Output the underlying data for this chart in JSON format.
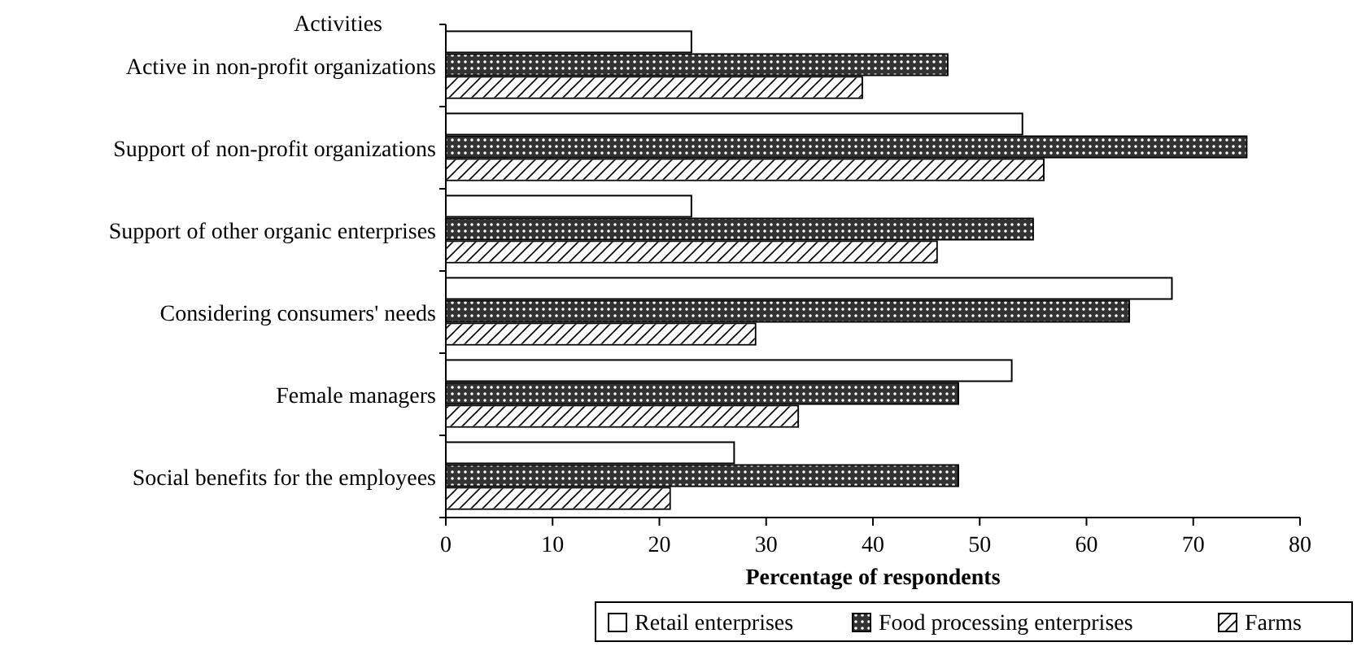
{
  "chart_data": {
    "type": "bar",
    "orientation": "horizontal",
    "ylabel": "Activities",
    "xlabel": "Percentage of respondents",
    "categories": [
      "Active in non-profit organizations",
      "Support of non-profit organizations",
      "Support of other organic enterprises",
      "Considering consumers' needs",
      "Female managers",
      "Social benefits for the employees"
    ],
    "series": [
      {
        "name": "Retail enterprises",
        "color": "#ffffff",
        "values": [
          23,
          54,
          23,
          68,
          53,
          27
        ]
      },
      {
        "name": "Food processing enterprises",
        "color": "#333333",
        "values": [
          47,
          75,
          55,
          64,
          48,
          48
        ]
      },
      {
        "name": "Farms",
        "color": "#ffffff",
        "values": [
          39,
          56,
          46,
          29,
          33,
          21
        ]
      }
    ],
    "xlim": [
      0,
      80
    ],
    "xticks": [
      0,
      10,
      20,
      30,
      40,
      50,
      60,
      70,
      80
    ],
    "grid": false,
    "legend": "bottom"
  }
}
